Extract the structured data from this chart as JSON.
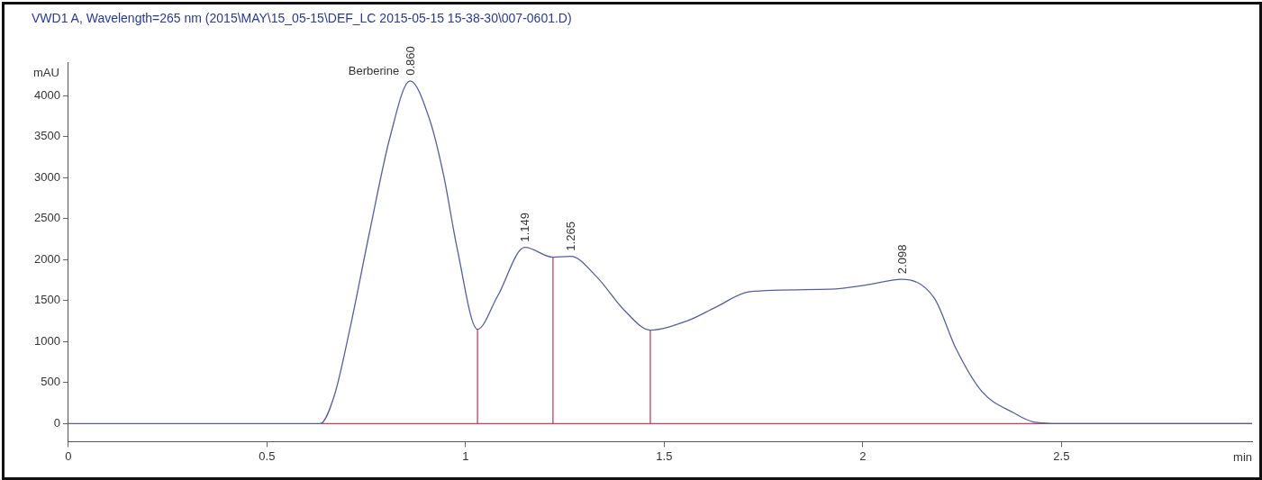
{
  "chart_data": {
    "type": "line",
    "title": "VWD1 A, Wavelength=265 nm (2015\\MAY\\15_05-15\\DEF_LC 2015-05-15 15-38-30\\007-0601.D)",
    "xlabel": "min",
    "ylabel": "mAU",
    "series": [
      {
        "color": "#55609a",
        "x": [
          0,
          0.6,
          0.634,
          0.67,
          0.708,
          0.758,
          0.81,
          0.86,
          0.91,
          0.945,
          0.979,
          1.03,
          1.08,
          1.149,
          1.22,
          1.265,
          1.33,
          1.4,
          1.465,
          1.556,
          1.63,
          1.715,
          1.917,
          2.02,
          2.098,
          2.18,
          2.235,
          2.3,
          2.38,
          2.43,
          2.5,
          2.98
        ],
        "values": [
          0,
          0,
          0,
          350,
          1140,
          2330,
          3500,
          4180,
          3700,
          3020,
          2130,
          1150,
          1550,
          2150,
          2030,
          2040,
          1790,
          1380,
          1140,
          1250,
          1420,
          1610,
          1640,
          1700,
          1760,
          1530,
          910,
          390,
          130,
          20,
          0,
          0
        ]
      },
      {
        "color": "#c8405a",
        "x": [
          0.634,
          2.98
        ],
        "values": [
          0,
          0
        ]
      },
      {
        "color": "#c8405a",
        "x": [
          1.03,
          1.03
        ],
        "values": [
          0,
          1150
        ]
      },
      {
        "color": "#c8405a",
        "x": [
          1.22,
          1.22
        ],
        "values": [
          0,
          2030
        ]
      },
      {
        "color": "#c8405a",
        "x": [
          1.465,
          1.465
        ],
        "values": [
          0,
          1140
        ]
      }
    ],
    "xlim": [
      0,
      2.98
    ],
    "xticks": [
      0,
      0.5,
      1,
      1.5,
      2,
      2.5
    ],
    "ylim": [
      -220,
      4400
    ],
    "yticks": [
      0,
      500,
      1000,
      1500,
      2000,
      2500,
      3000,
      3500,
      4000
    ],
    "grid": false,
    "legend": false,
    "annotations": [
      {
        "text": "Berberine",
        "x": 0.86,
        "y": 4180
      },
      {
        "text": "0.860",
        "x": 0.86,
        "y": 4180
      },
      {
        "text": "1.149",
        "x": 1.149,
        "y": 2150
      },
      {
        "text": "1.265",
        "x": 1.265,
        "y": 2040
      },
      {
        "text": "2.098",
        "x": 2.098,
        "y": 1760
      }
    ]
  }
}
